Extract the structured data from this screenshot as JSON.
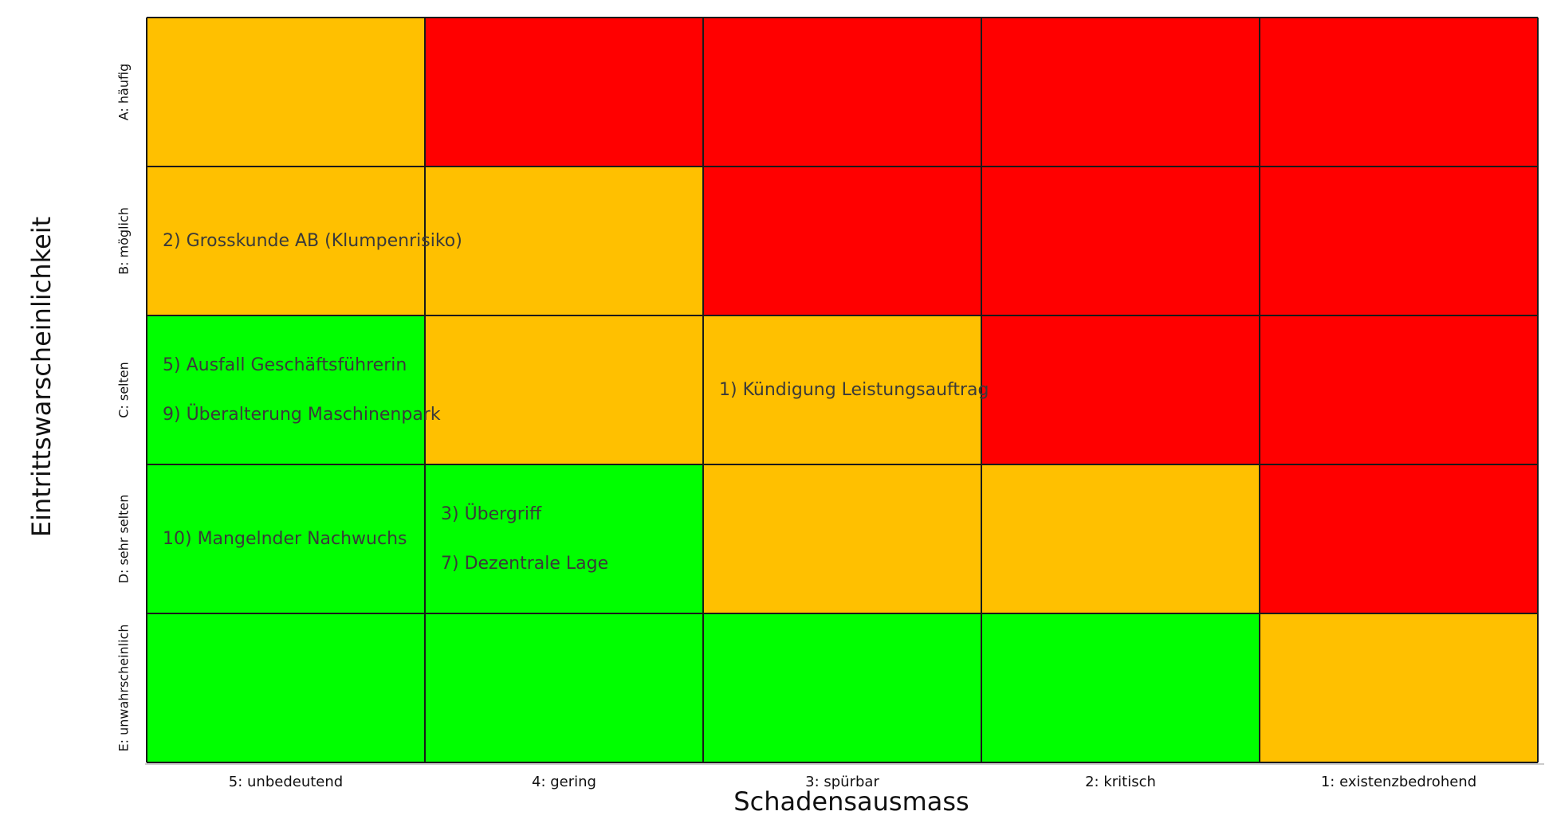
{
  "chart_data": {
    "type": "heatmap",
    "title": "",
    "xlabel": "Schadensausmass",
    "ylabel": "Eintrittswarscheinlichkeit",
    "columns": [
      "5: unbedeutend",
      "4: gering",
      "3: spürbar",
      "2: kritisch",
      "1: existenzbedrohend"
    ],
    "rows": [
      "A: häufig",
      "B: möglich",
      "C: selten",
      "D: sehr selten",
      "E: unwahrscheinlich"
    ],
    "colors": {
      "R": "#ff0000",
      "O": "#ffc000",
      "G": "#00ff00",
      "border": "#1a1a1a"
    },
    "cells": [
      [
        "O",
        "R",
        "R",
        "R",
        "R"
      ],
      [
        "O",
        "O",
        "R",
        "R",
        "R"
      ],
      [
        "G",
        "O",
        "O",
        "R",
        "R"
      ],
      [
        "G",
        "G",
        "O",
        "O",
        "R"
      ],
      [
        "G",
        "G",
        "G",
        "G",
        "O"
      ]
    ],
    "risks": [
      {
        "row": 1,
        "col": 0,
        "items": [
          "2) Grosskunde AB (Klumpenrisiko)"
        ]
      },
      {
        "row": 2,
        "col": 0,
        "items": [
          "5) Ausfall Geschäftsführerin",
          "9) Überalterung Maschinenpark"
        ]
      },
      {
        "row": 2,
        "col": 2,
        "items": [
          "1) Kündigung Leistungsauftrag"
        ]
      },
      {
        "row": 3,
        "col": 0,
        "items": [
          "10) Mangelnder Nachwuchs"
        ]
      },
      {
        "row": 3,
        "col": 1,
        "items": [
          "3) Übergriff",
          "7) Dezentrale Lage"
        ]
      }
    ]
  }
}
